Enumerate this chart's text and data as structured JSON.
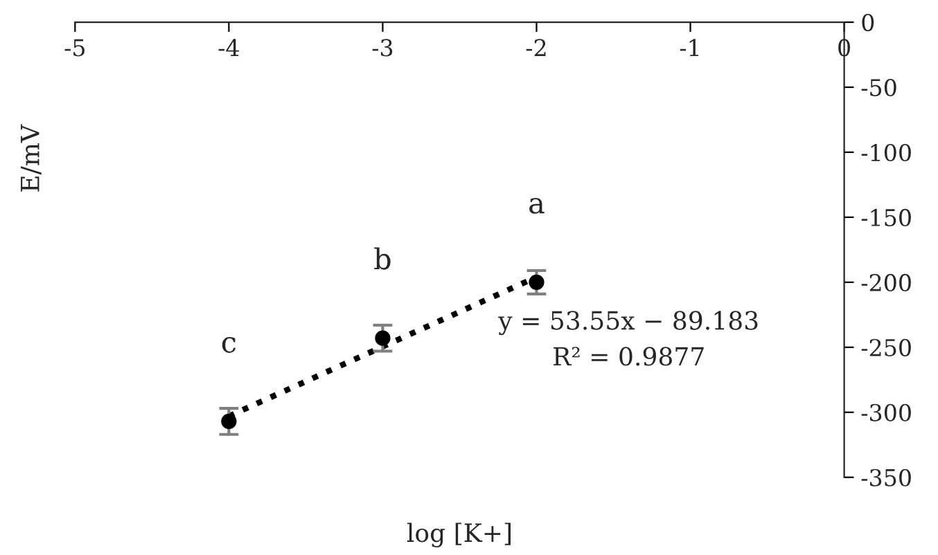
{
  "chart_data": {
    "type": "scatter",
    "xlabel": "log [K+]",
    "ylabel": "E/mV",
    "xlim": [
      -5,
      0
    ],
    "xticks": [
      -5,
      -4,
      -3,
      -2,
      -1,
      0
    ],
    "ylim": [
      -350,
      0
    ],
    "yticks": [
      -350,
      -300,
      -250,
      -200,
      -150,
      -100,
      -50,
      0
    ],
    "grid": false,
    "legend": false,
    "series": [
      {
        "color": "#000000",
        "marker": "circle",
        "x": [
          -4,
          -3,
          -2
        ],
        "values": [
          -307,
          -243,
          -200
        ],
        "errors": [
          10,
          10,
          9
        ]
      },
      {
        "type": "line",
        "color": "#000000",
        "line_style": "dotted",
        "x": [
          -4,
          -2
        ],
        "values": [
          -303,
          -196
        ]
      }
    ],
    "annotations": [
      {
        "text": "a",
        "x": -2,
        "y": -200
      },
      {
        "text": "b",
        "x": -3,
        "y": -243
      },
      {
        "text": "c",
        "x": -4,
        "y": -307
      },
      "y = 53.55x − 89.183\nR² = 0.9877"
    ]
  }
}
